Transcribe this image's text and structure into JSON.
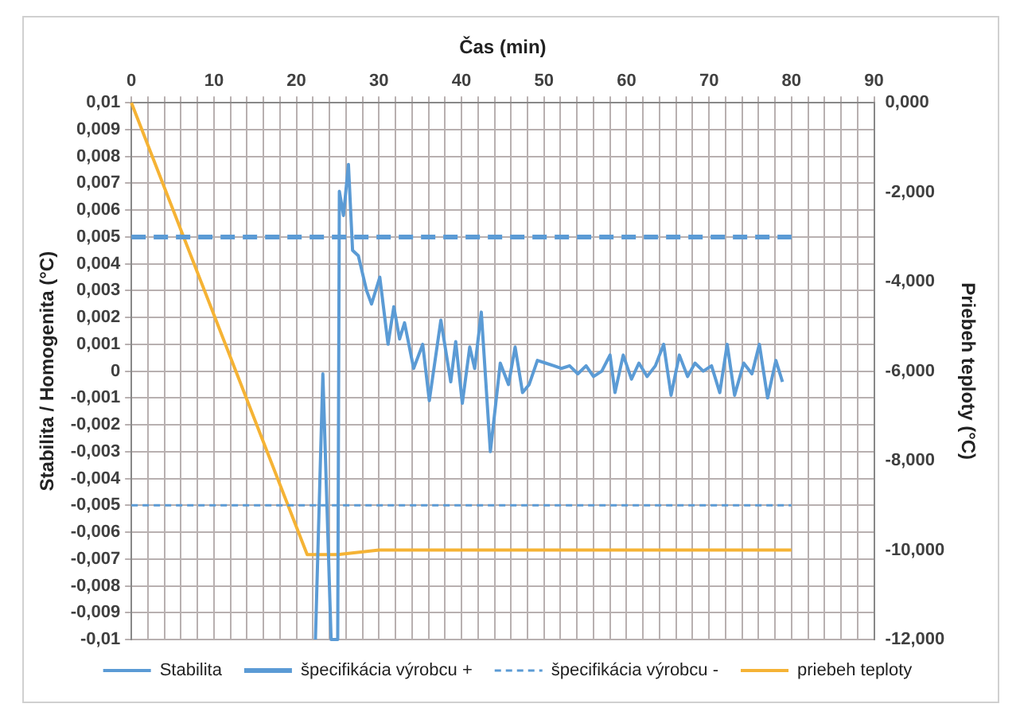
{
  "chart_data": {
    "type": "line",
    "xlabel": "Čas (min)",
    "ylabel": "Stabilita / Homogenita (°C)",
    "y2label": "Priebeh teploty (°C)",
    "xlim": [
      0,
      90
    ],
    "xticks": [
      0,
      {
        "value": 2,
        "label": null
      },
      {
        "value": 4,
        "label": null
      },
      {
        "value": 6,
        "label": null
      },
      {
        "value": 8,
        "label": null
      },
      10,
      {
        "value": 12,
        "label": null
      },
      {
        "value": 14,
        "label": null
      },
      {
        "value": 16,
        "label": null
      },
      {
        "value": 18,
        "label": null
      },
      20,
      {
        "value": 22,
        "label": null
      },
      {
        "value": 24,
        "label": null
      },
      {
        "value": 26,
        "label": null
      },
      {
        "value": 28,
        "label": null
      },
      30,
      {
        "value": 32,
        "label": null
      },
      {
        "value": 34,
        "label": null
      },
      {
        "value": 36,
        "label": null
      },
      {
        "value": 38,
        "label": null
      },
      40,
      {
        "value": 42,
        "label": null
      },
      {
        "value": 44,
        "label": null
      },
      {
        "value": 46,
        "label": null
      },
      {
        "value": 48,
        "label": null
      },
      50,
      {
        "value": 52,
        "label": null
      },
      {
        "value": 54,
        "label": null
      },
      {
        "value": 56,
        "label": null
      },
      {
        "value": 58,
        "label": null
      },
      60,
      {
        "value": 62,
        "label": null
      },
      {
        "value": 64,
        "label": null
      },
      {
        "value": 66,
        "label": null
      },
      {
        "value": 68,
        "label": null
      },
      70,
      {
        "value": 72,
        "label": null
      },
      {
        "value": 74,
        "label": null
      },
      {
        "value": 76,
        "label": null
      },
      {
        "value": 78,
        "label": null
      },
      80,
      {
        "value": 82,
        "label": null
      },
      {
        "value": 84,
        "label": null
      },
      {
        "value": 86,
        "label": null
      },
      {
        "value": 88,
        "label": null
      },
      90
    ],
    "ylim": [
      -0.01,
      0.01
    ],
    "yticks": [
      {
        "value": -0.01,
        "label": "-0,01"
      },
      {
        "value": -0.009,
        "label": "-0,009"
      },
      {
        "value": -0.008,
        "label": "-0,008"
      },
      {
        "value": -0.007,
        "label": "-0,007"
      },
      {
        "value": -0.006,
        "label": "-0,006"
      },
      {
        "value": -0.005,
        "label": "-0,005"
      },
      {
        "value": -0.004,
        "label": "-0,004"
      },
      {
        "value": -0.003,
        "label": "-0,003"
      },
      {
        "value": -0.002,
        "label": "-0,002"
      },
      {
        "value": -0.001,
        "label": "-0,001"
      },
      0,
      {
        "value": 0.001,
        "label": "0,001"
      },
      {
        "value": 0.002,
        "label": "0,002"
      },
      {
        "value": 0.003,
        "label": "0,003"
      },
      {
        "value": 0.004,
        "label": "0,004"
      },
      {
        "value": 0.005,
        "label": "0,005"
      },
      {
        "value": 0.006,
        "label": "0,006"
      },
      {
        "value": 0.007,
        "label": "0,007"
      },
      {
        "value": 0.008,
        "label": "0,008"
      },
      {
        "value": 0.009,
        "label": "0,009"
      },
      {
        "value": 0.01,
        "label": "0,01"
      }
    ],
    "y2lim": [
      -12,
      0
    ],
    "y2ticks": [
      {
        "value": -12,
        "label": "-12,000"
      },
      {
        "value": -10,
        "label": "-10,000"
      },
      {
        "value": -8,
        "label": "-8,000"
      },
      {
        "value": -6,
        "label": "-6,000"
      },
      {
        "value": -4,
        "label": "-4,000"
      },
      {
        "value": -2,
        "label": "-2,000"
      },
      {
        "value": 0,
        "label": "0,000"
      }
    ],
    "grid": true,
    "legend": "bottom",
    "marker": "none",
    "series": [
      {
        "name": "Stabilita",
        "color": "#5b9bd5",
        "line_style": "solid",
        "x": [
          22.3,
          23.2,
          24.2,
          25.0,
          25.2,
          25.7,
          26.3,
          26.8,
          27.5,
          28.5,
          29.1,
          30.1,
          31.1,
          31.8,
          32.5,
          33.1,
          34.2,
          35.3,
          36.1,
          37.5,
          38.7,
          39.3,
          40.1,
          41.0,
          41.6,
          42.4,
          43.5,
          44.7,
          45.7,
          46.5,
          47.4,
          48.2,
          49.2,
          50.2,
          51.2,
          52.1,
          53.1,
          54.1,
          55.1,
          56.0,
          57.0,
          58.0,
          58.6,
          59.6,
          60.6,
          61.5,
          62.5,
          63.5,
          64.5,
          65.4,
          66.4,
          67.4,
          68.3,
          69.3,
          70.3,
          71.3,
          72.2,
          73.1,
          74.2,
          75.2,
          76.1,
          77.1,
          78.1,
          78.9
        ],
        "values": [
          -0.01,
          -0.0001,
          -0.01,
          -0.01,
          0.0067,
          0.0058,
          0.0077,
          0.0045,
          0.0043,
          0.003,
          0.0025,
          0.0035,
          0.001,
          0.0024,
          0.0012,
          0.0018,
          0.0001,
          0.001,
          -0.0011,
          0.0019,
          -0.0004,
          0.0011,
          -0.0012,
          0.0009,
          0.0001,
          0.0022,
          -0.003,
          0.0003,
          -0.0005,
          0.0009,
          -0.0008,
          -0.0005,
          0.0004,
          0.0003,
          0.0002,
          0.0001,
          0.0002,
          -0.0001,
          0.0002,
          -0.0002,
          0,
          0.0006,
          -0.0008,
          0.0006,
          -0.0003,
          0.0003,
          -0.0002,
          0.0002,
          0.001,
          -0.0009,
          0.0006,
          -0.0002,
          0.0003,
          0,
          0.0002,
          -0.0008,
          0.001,
          -0.0009,
          0.0003,
          -0.0001,
          0.001,
          -0.001,
          0.0004,
          -0.0004
        ]
      },
      {
        "name": "špecifikácia výrobcu +",
        "color": "#5b9bd5",
        "line_style": "dashed",
        "x": [
          0,
          80
        ],
        "values": [
          0.005,
          0.005
        ]
      },
      {
        "name": "špecifikácia výrobcu -",
        "color": "#5b9bd5",
        "line_style": "dotted",
        "x": [
          0,
          80
        ],
        "values": [
          -0.005,
          -0.005
        ]
      },
      {
        "name": "priebeh teploty",
        "color": "#f5b335",
        "line_style": "solid",
        "axis": "y2",
        "x": [
          0,
          21.3,
          25,
          30,
          80
        ],
        "values": [
          0,
          -10.1,
          -10.1,
          -10,
          -10
        ]
      }
    ]
  }
}
